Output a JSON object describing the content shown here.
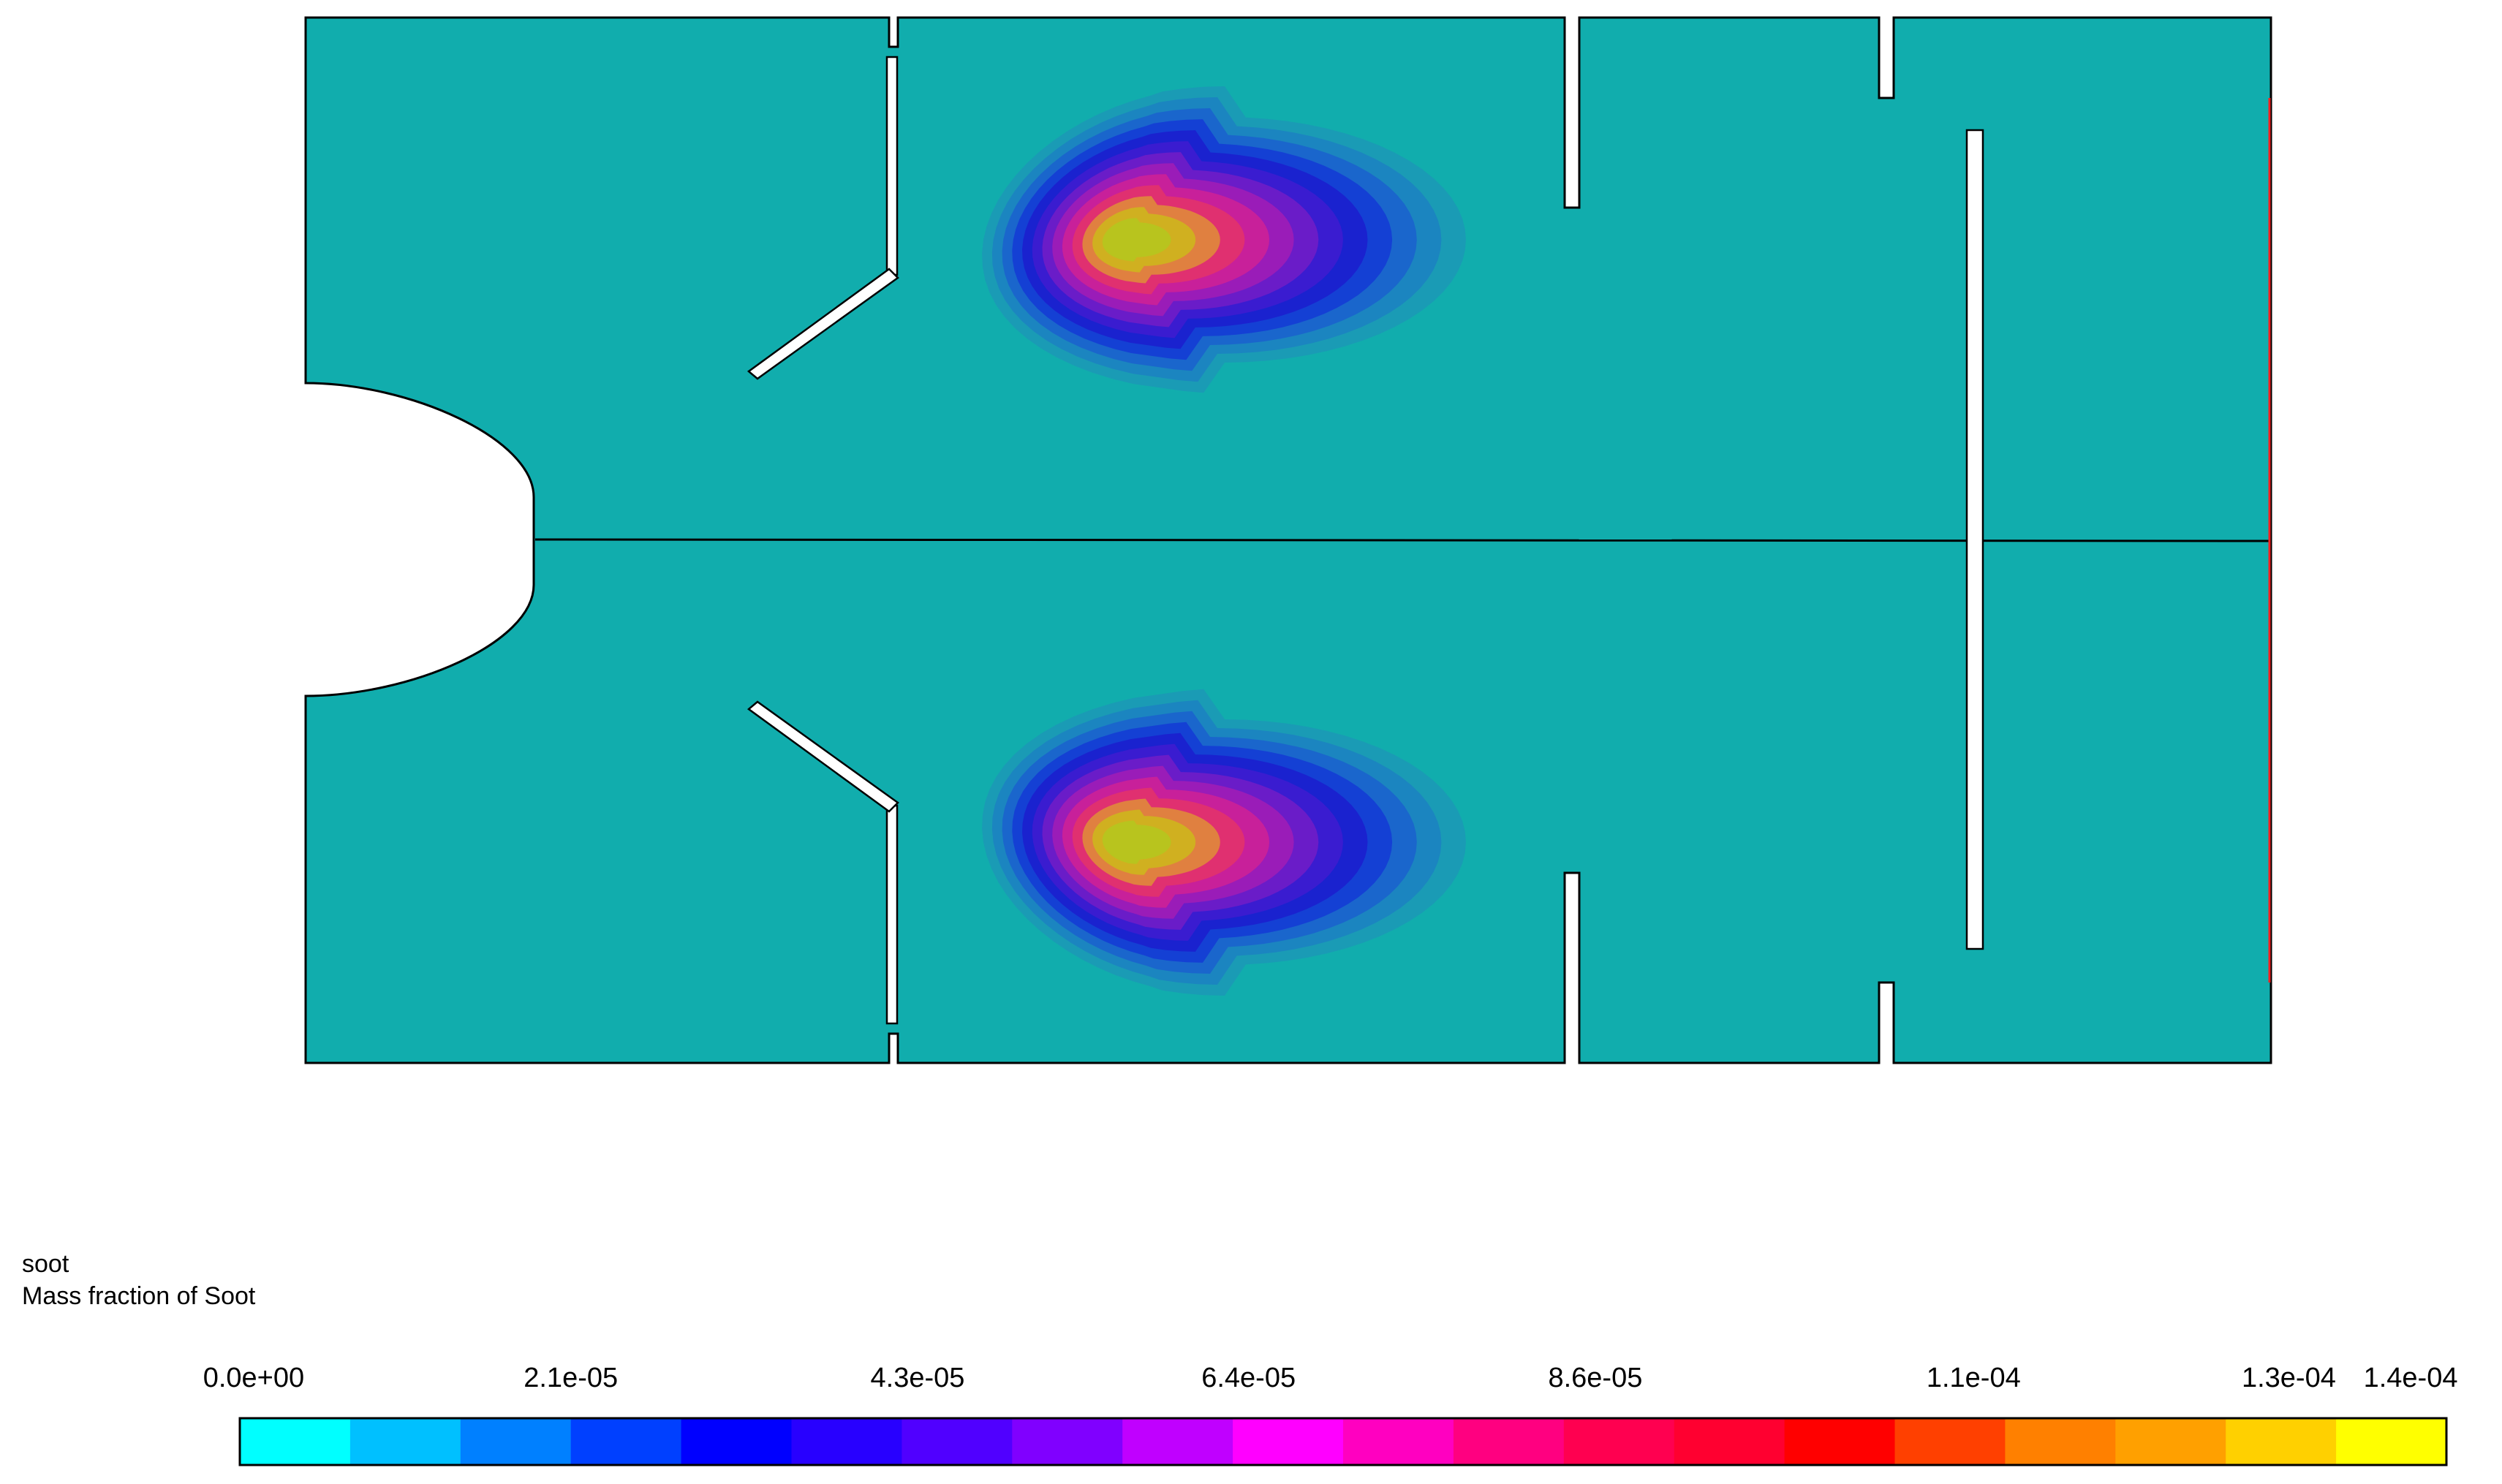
{
  "legend": {
    "variable": "soot",
    "description": "Mass fraction of Soot",
    "tick_labels": [
      "0.0e+00",
      "2.1e-05",
      "4.3e-05",
      "6.4e-05",
      "8.6e-05",
      "1.1e-04",
      "1.3e-04",
      "1.4e-04"
    ],
    "range": [
      0,
      0.00014
    ],
    "colors": [
      "#00ffff",
      "#00c0ff",
      "#0080ff",
      "#0040ff",
      "#0000ff",
      "#2800ff",
      "#5000ff",
      "#8000ff",
      "#c000ff",
      "#ff00ff",
      "#ff00c0",
      "#ff0080",
      "#ff0050",
      "#ff0030",
      "#ff0000",
      "#ff4000",
      "#ff8000",
      "#ffa000",
      "#ffd000",
      "#ffff00"
    ]
  },
  "field": {
    "background_color": "#11adad",
    "levels": [
      "#1a9bb5",
      "#1b85c0",
      "#1a66cc",
      "#1440d4",
      "#1a22cf",
      "#3a1cd0",
      "#6a1cc8",
      "#9a1cb8",
      "#c8209a",
      "#e03070",
      "#e08040",
      "#d0b020",
      "#b8c41e"
    ]
  }
}
